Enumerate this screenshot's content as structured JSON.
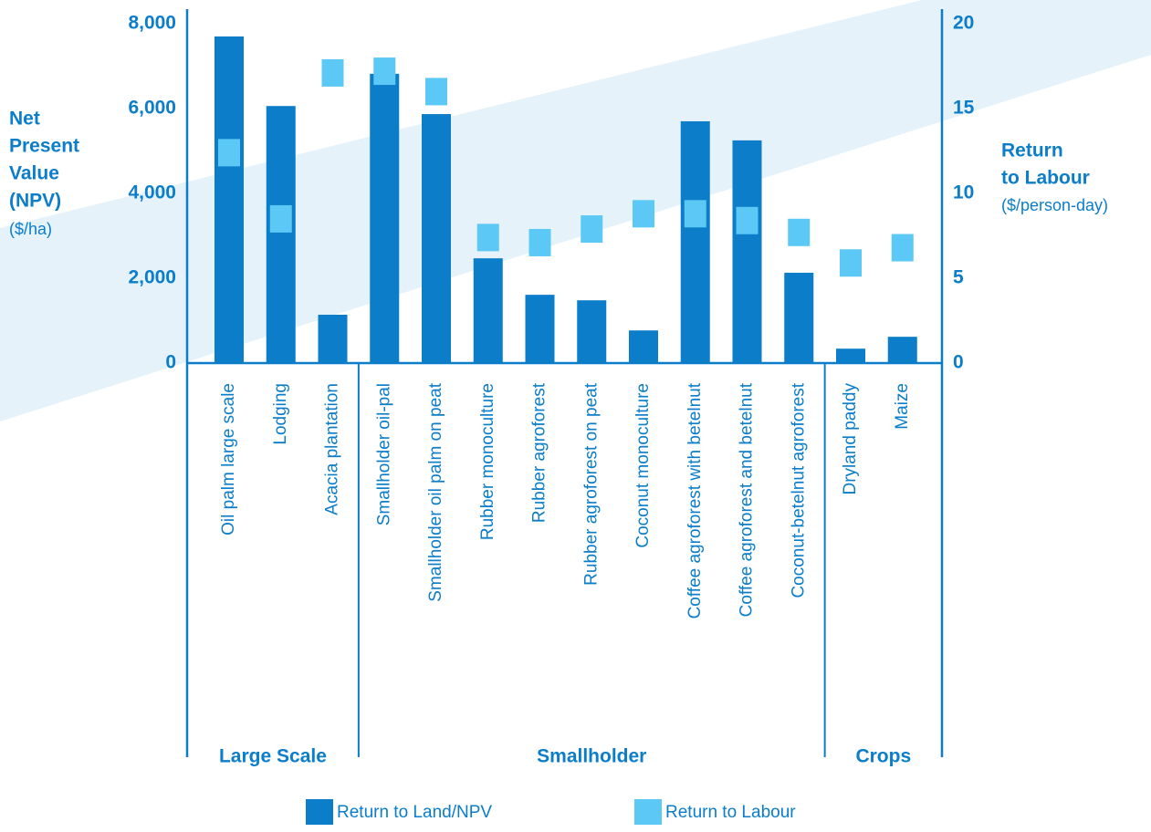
{
  "chart_data": {
    "type": "bar",
    "categories": [
      "Oil palm large scale",
      "Lodging",
      "Acacia plantation",
      "Smallholder oil-pal",
      "Smallholder oil palm on peat",
      "Rubber monoculture",
      "Rubber agroforest",
      "Rubber agroforest on peat",
      "Coconut monoculture",
      "Coffee agroforest with betelnut",
      "Coffee agroforest and betelnut",
      "Coconut-betelnut agroforest",
      "Dryland paddy",
      "Maize"
    ],
    "groups": [
      {
        "label": "Large Scale",
        "size": 3
      },
      {
        "label": "Smallholder",
        "size": 9
      },
      {
        "label": "Crops",
        "size": 2
      }
    ],
    "series": [
      {
        "name": "Return to Land/NPV",
        "color": "#0b7dc9",
        "values": [
          7700,
          6060,
          1140,
          6820,
          5870,
          2470,
          1610,
          1480,
          770,
          5700,
          5250,
          2130,
          340,
          620
        ]
      },
      {
        "name": "Return to Labour",
        "color": "#5bc8f5",
        "axis": "y2",
        "values": [
          12.4,
          8.5,
          17.1,
          17.2,
          16,
          7.4,
          7.1,
          7.9,
          8.8,
          8.8,
          8.4,
          7.7,
          5.9,
          6.8
        ]
      }
    ],
    "y_label": [
      "Net",
      "Present",
      "Value",
      "(NPV)"
    ],
    "y_unit": "($/ha)",
    "y2_label": [
      "Return",
      "to Labour"
    ],
    "y2_unit": "($/person-day)",
    "ylim": [
      0,
      8000
    ],
    "yticks": [
      {
        "value": 0,
        "label": "0"
      },
      {
        "value": 2000,
        "label": "2,000"
      },
      {
        "value": 4000,
        "label": "4,000"
      },
      {
        "value": 6000,
        "label": "6,000"
      },
      {
        "value": 8000,
        "label": "8,000"
      }
    ],
    "y2lim": [
      0,
      20
    ],
    "y2ticks": [
      0,
      5,
      10,
      15,
      20
    ]
  }
}
